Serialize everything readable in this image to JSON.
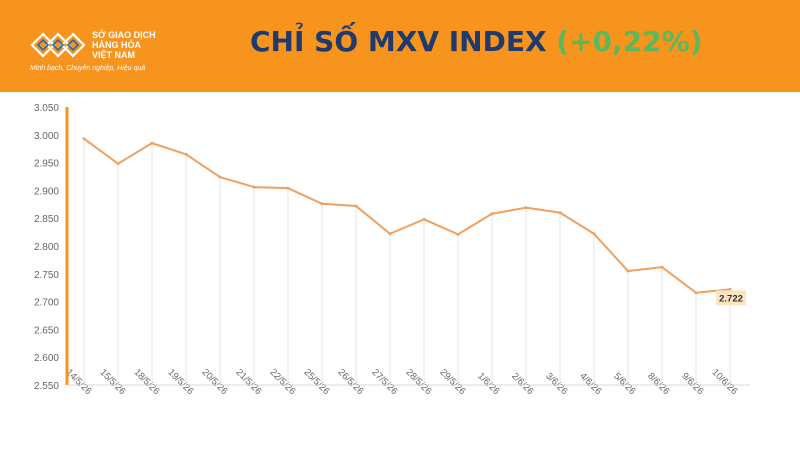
{
  "header": {
    "org_line1": "SỞ GIAO DỊCH",
    "org_line2": "HÀNG HÓA",
    "org_line3": "VIỆT NAM",
    "slogan": "Minh bạch, Chuyên nghiệp, Hiệu quả",
    "title": "CHỈ SỐ MXV INDEX",
    "change": "(+0,22%)",
    "bg_color": "#f7941d",
    "title_color": "#1f3a6e",
    "change_color": "#5cb85c"
  },
  "chart_data": {
    "type": "line",
    "title": "",
    "xlabel": "",
    "ylabel": "",
    "categories": [
      "14/5/26",
      "15/5/26",
      "18/5/26",
      "19/5/26",
      "20/5/26",
      "21/5/26",
      "22/5/26",
      "25/5/26",
      "26/5/26",
      "27/5/26",
      "28/5/26",
      "29/5/26",
      "1/6/26",
      "2/6/26",
      "3/6/26",
      "4/6/26",
      "5/6/26",
      "8/6/26",
      "9/6/26",
      "10/6/26"
    ],
    "values": [
      2993,
      2948,
      2985,
      2965,
      2924,
      2906,
      2904,
      2876,
      2872,
      2822,
      2848,
      2821,
      2858,
      2869,
      2860,
      2822,
      2755,
      2762,
      2716,
      2722
    ],
    "value_labels": [
      "",
      "",
      "",
      "",
      "",
      "",
      "",
      "",
      "",
      "",
      "",
      "",
      "",
      "",
      "",
      "",
      "",
      "",
      "",
      "2.722"
    ],
    "ylim": [
      2550,
      3050
    ],
    "yticks": [
      2550,
      2600,
      2650,
      2700,
      2750,
      2800,
      2850,
      2900,
      2950,
      3000,
      3050
    ],
    "ytick_labels": [
      "2.550",
      "2.600",
      "2.650",
      "2.700",
      "2.750",
      "2.800",
      "2.850",
      "2.900",
      "2.950",
      "3.000",
      "3.050"
    ],
    "line_color": "#f0a060",
    "axis_color": "#f7941d",
    "grid": false,
    "legend": "none"
  }
}
